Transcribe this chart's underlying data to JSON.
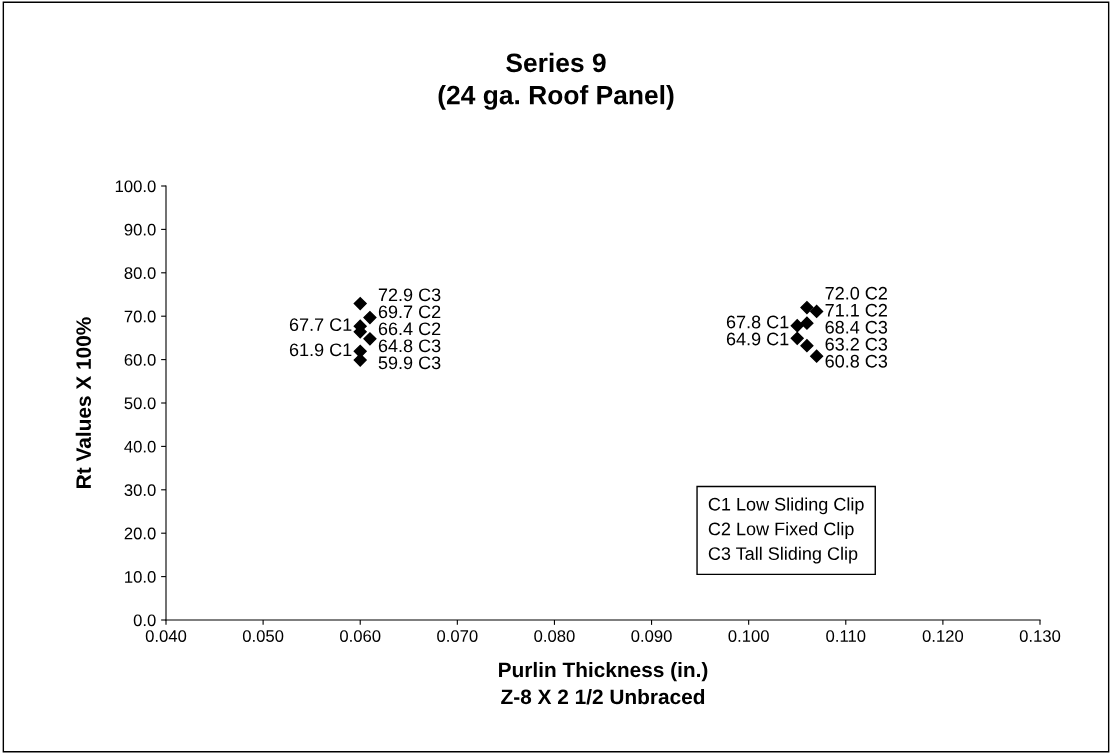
{
  "chart_data": {
    "type": "scatter",
    "title": "Series 9\n(24 ga. Roof Panel)",
    "xlabel": "Purlin Thickness (in.)\nZ-8 X 2 1/2 Unbraced",
    "ylabel": "Rt Values X 100%",
    "xlim": [
      0.04,
      0.13
    ],
    "xticks": [
      {
        "value": 0.04,
        "label": "0.040"
      },
      {
        "value": 0.05,
        "label": "0.050"
      },
      {
        "value": 0.06,
        "label": "0.060"
      },
      {
        "value": 0.07,
        "label": "0.070"
      },
      {
        "value": 0.08,
        "label": "0.080"
      },
      {
        "value": 0.09,
        "label": "0.090"
      },
      {
        "value": 0.1,
        "label": "0.100"
      },
      {
        "value": 0.11,
        "label": "0.110"
      },
      {
        "value": 0.12,
        "label": "0.120"
      },
      {
        "value": 0.13,
        "label": "0.130"
      }
    ],
    "ylim": [
      0,
      100
    ],
    "yticks": [
      {
        "value": 0,
        "label": "0.0"
      },
      {
        "value": 10,
        "label": "10.0"
      },
      {
        "value": 20,
        "label": "20.0"
      },
      {
        "value": 30,
        "label": "30.0"
      },
      {
        "value": 40,
        "label": "40.0"
      },
      {
        "value": 50,
        "label": "50.0"
      },
      {
        "value": 60,
        "label": "60.0"
      },
      {
        "value": 70,
        "label": "70.0"
      },
      {
        "value": 80,
        "label": "80.0"
      },
      {
        "value": 90,
        "label": "90.0"
      },
      {
        "value": 100,
        "label": "100.0"
      }
    ],
    "marker": "diamond",
    "grid": false,
    "series": [
      {
        "color": "#000000",
        "x": [
          0.06,
          0.06,
          0.105,
          0.105
        ],
        "values": [
          67.7,
          61.9,
          67.8,
          64.9
        ],
        "value_labels": [
          "67.7 C1",
          "61.9 C1",
          "67.8 C1",
          "64.9 C1"
        ]
      },
      {
        "color": "#000000",
        "x": [
          0.061,
          0.06,
          0.106,
          0.107
        ],
        "values": [
          69.7,
          66.4,
          72.0,
          71.1
        ],
        "value_labels": [
          "69.7 C2",
          "66.4 C2",
          "72.0 C2",
          "71.1 C2"
        ]
      },
      {
        "color": "#000000",
        "x": [
          0.06,
          0.061,
          0.06,
          0.106,
          0.106,
          0.107
        ],
        "values": [
          72.9,
          64.8,
          59.9,
          68.4,
          63.2,
          60.8
        ],
        "value_labels": [
          "72.9 C3",
          "64.8 C3",
          "59.9 C3",
          "68.4 C3",
          "63.2 C3",
          "60.8 C3"
        ]
      }
    ],
    "annotations": [
      "C1 Low Sliding Clip\nC2 Low Fixed Clip\nC3 Tall Sliding Clip"
    ]
  }
}
